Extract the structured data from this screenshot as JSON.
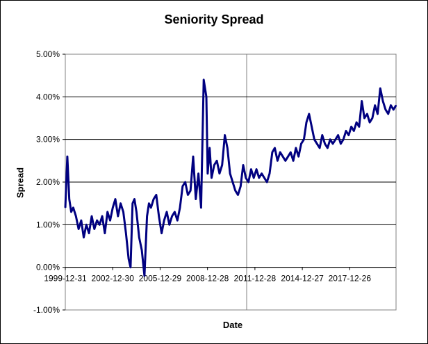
{
  "chart_data": {
    "type": "line",
    "title": "Seniority Spread",
    "xlabel": "Date",
    "ylabel": "Spread",
    "xlim": [
      "1999-12-31",
      "2020-11-30"
    ],
    "ylim": [
      -0.01,
      0.05
    ],
    "y_ticks": [
      "-1.00%",
      "0.00%",
      "1.00%",
      "2.00%",
      "3.00%",
      "4.00%",
      "5.00%"
    ],
    "x_ticks": [
      "1999-12-31",
      "2002-12-30",
      "2005-12-29",
      "2008-12-28",
      "2011-12-28",
      "2014-12-27",
      "2017-12-26"
    ],
    "grid": "horizontal",
    "legend": "none",
    "series": [
      {
        "color": "#000080",
        "x": [
          "1999-12-31",
          "2000-02-15",
          "2000-04-01",
          "2000-05-15",
          "2000-07-01",
          "2000-09-01",
          "2000-11-01",
          "2001-01-01",
          "2001-03-01",
          "2001-05-01",
          "2001-07-01",
          "2001-09-01",
          "2001-11-01",
          "2002-01-01",
          "2002-03-01",
          "2002-05-01",
          "2002-07-01",
          "2002-09-01",
          "2002-11-01",
          "2003-01-01",
          "2003-03-01",
          "2003-05-01",
          "2003-07-01",
          "2003-09-01",
          "2003-11-01",
          "2004-01-01",
          "2004-02-15",
          "2004-04-01",
          "2004-05-15",
          "2004-07-01",
          "2004-09-01",
          "2004-11-01",
          "2005-01-01",
          "2005-03-01",
          "2005-04-15",
          "2005-06-01",
          "2005-08-01",
          "2005-10-01",
          "2005-12-01",
          "2006-02-01",
          "2006-04-01",
          "2006-06-01",
          "2006-08-01",
          "2006-10-01",
          "2006-12-01",
          "2007-02-01",
          "2007-04-01",
          "2007-06-01",
          "2007-08-01",
          "2007-10-01",
          "2007-12-01",
          "2008-02-01",
          "2008-04-01",
          "2008-06-01",
          "2008-08-01",
          "2008-10-01",
          "2008-12-01",
          "2009-01-01",
          "2009-02-15",
          "2009-04-01",
          "2009-06-01",
          "2009-08-01",
          "2009-10-01",
          "2009-12-01",
          "2010-02-01",
          "2010-04-01",
          "2010-06-01",
          "2010-08-01",
          "2010-10-01",
          "2010-12-01",
          "2011-02-01",
          "2011-04-01",
          "2011-06-01",
          "2011-08-01",
          "2011-10-01",
          "2011-12-01",
          "2012-02-01",
          "2012-04-01",
          "2012-06-01",
          "2012-08-01",
          "2012-10-01",
          "2012-12-01",
          "2013-02-01",
          "2013-04-01",
          "2013-06-01",
          "2013-08-01",
          "2013-10-01",
          "2013-12-01",
          "2014-02-01",
          "2014-04-01",
          "2014-06-01",
          "2014-08-01",
          "2014-10-01",
          "2014-12-01",
          "2015-02-01",
          "2015-04-01",
          "2015-06-01",
          "2015-08-01",
          "2015-10-01",
          "2015-12-01",
          "2016-02-01",
          "2016-04-01",
          "2016-06-01",
          "2016-08-01",
          "2016-10-01",
          "2016-12-01",
          "2017-02-01",
          "2017-04-01",
          "2017-06-01",
          "2017-08-01",
          "2017-10-01",
          "2017-12-01",
          "2018-02-01",
          "2018-04-01",
          "2018-06-01",
          "2018-08-01",
          "2018-10-01",
          "2018-12-01",
          "2019-02-01",
          "2019-04-01",
          "2019-06-01",
          "2019-08-01",
          "2019-10-01",
          "2019-12-01",
          "2020-02-01",
          "2020-04-01",
          "2020-06-01",
          "2020-08-01",
          "2020-10-01",
          "2020-11-30"
        ],
        "y": [
          0.014,
          0.026,
          0.016,
          0.013,
          0.014,
          0.012,
          0.009,
          0.011,
          0.007,
          0.01,
          0.008,
          0.012,
          0.009,
          0.011,
          0.01,
          0.012,
          0.008,
          0.013,
          0.011,
          0.014,
          0.016,
          0.012,
          0.015,
          0.013,
          0.008,
          0.002,
          0.0,
          0.015,
          0.016,
          0.013,
          0.007,
          0.004,
          -0.002,
          0.012,
          0.015,
          0.014,
          0.016,
          0.017,
          0.012,
          0.008,
          0.011,
          0.013,
          0.01,
          0.012,
          0.013,
          0.011,
          0.014,
          0.019,
          0.02,
          0.017,
          0.018,
          0.026,
          0.016,
          0.022,
          0.014,
          0.044,
          0.04,
          0.022,
          0.028,
          0.021,
          0.024,
          0.025,
          0.022,
          0.024,
          0.031,
          0.028,
          0.022,
          0.02,
          0.018,
          0.017,
          0.019,
          0.024,
          0.021,
          0.02,
          0.023,
          0.021,
          0.023,
          0.021,
          0.022,
          0.021,
          0.02,
          0.022,
          0.027,
          0.028,
          0.025,
          0.027,
          0.026,
          0.025,
          0.026,
          0.027,
          0.025,
          0.028,
          0.026,
          0.029,
          0.03,
          0.034,
          0.036,
          0.033,
          0.03,
          0.029,
          0.028,
          0.031,
          0.029,
          0.028,
          0.03,
          0.029,
          0.03,
          0.031,
          0.029,
          0.03,
          0.032,
          0.031,
          0.033,
          0.032,
          0.034,
          0.033,
          0.039,
          0.035,
          0.036,
          0.034,
          0.035,
          0.038,
          0.036,
          0.042,
          0.039,
          0.037,
          0.036,
          0.038,
          0.037,
          0.038
        ]
      }
    ]
  }
}
